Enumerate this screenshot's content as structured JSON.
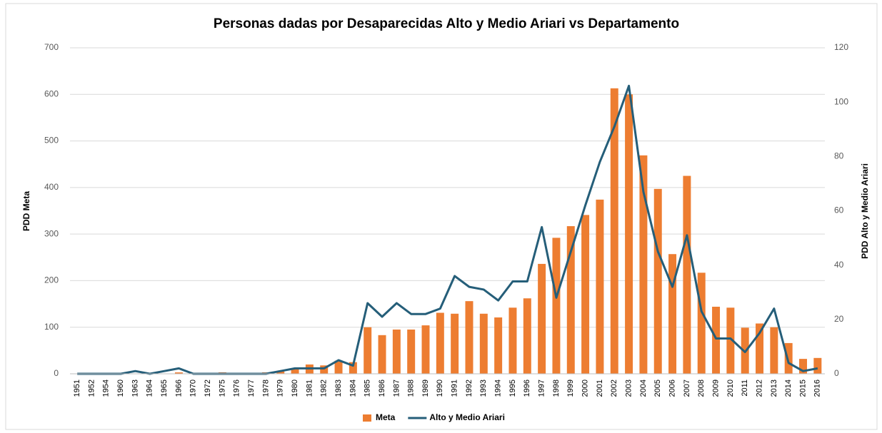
{
  "chart_data": {
    "type": "bar_line",
    "title": "Personas dadas por Desaparecidas Alto y Medio Ariari vs Departamento",
    "y_label": "PDD Meta",
    "y2_label": "PDD Alto y Medio Ariari",
    "categories": [
      "1951",
      "1952",
      "1954",
      "1960",
      "1963",
      "1964",
      "1965",
      "1966",
      "1970",
      "1972",
      "1975",
      "1976",
      "1977",
      "1978",
      "1979",
      "1980",
      "1981",
      "1982",
      "1983",
      "1984",
      "1985",
      "1986",
      "1987",
      "1988",
      "1989",
      "1990",
      "1991",
      "1992",
      "1993",
      "1994",
      "1995",
      "1996",
      "1997",
      "1998",
      "1999",
      "2000",
      "2001",
      "2002",
      "2003",
      "2004",
      "2005",
      "2006",
      "2007",
      "2008",
      "2009",
      "2010",
      "2011",
      "2012",
      "2013",
      "2014",
      "2015",
      "2016"
    ],
    "series": [
      {
        "name": "Meta",
        "color": "#ed7d31",
        "type": "bar",
        "values": [
          0,
          0,
          0,
          0,
          0,
          0,
          0,
          3,
          0,
          0,
          3,
          0,
          0,
          3,
          5,
          10,
          20,
          18,
          28,
          25,
          100,
          83,
          95,
          95,
          104,
          131,
          129,
          156,
          129,
          121,
          142,
          162,
          236,
          292,
          317,
          341,
          374,
          613,
          600,
          469,
          397,
          257,
          425,
          217,
          144,
          142,
          99,
          108,
          100,
          66,
          32,
          34
        ]
      },
      {
        "name": "Alto y Medio Ariari",
        "color": "#255e79",
        "type": "line",
        "axis": "y2",
        "values": [
          0,
          0,
          0,
          0,
          1,
          0,
          1,
          2,
          0,
          0,
          0,
          0,
          0,
          0,
          1,
          2,
          2,
          2,
          5,
          3,
          26,
          21,
          26,
          22,
          22,
          24,
          36,
          32,
          31,
          27,
          34,
          34,
          54,
          28,
          45,
          62,
          78,
          91,
          106,
          67,
          45,
          32,
          51,
          23,
          13,
          13,
          8,
          15,
          24,
          4,
          1,
          2
        ]
      }
    ],
    "ylim": [
      0,
      700
    ],
    "yticks": [
      0,
      100,
      200,
      300,
      400,
      500,
      600,
      700
    ],
    "y2lim": [
      0,
      120
    ],
    "y2ticks": [
      0,
      20,
      40,
      60,
      80,
      100,
      120
    ],
    "grid": true,
    "legend": "bottom"
  }
}
